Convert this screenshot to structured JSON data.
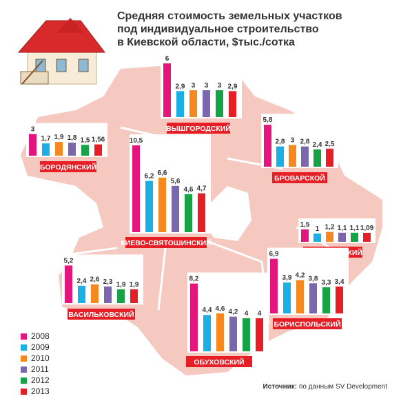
{
  "title": [
    "Средняя стоимость земельных участков",
    "под индивидуальное строительство",
    "в Киевской области, $тыс./сотка"
  ],
  "source": {
    "label": "Источник:",
    "text": "по данным SV Development"
  },
  "colors": [
    "#e4157c",
    "#1ab0e6",
    "#f5891f",
    "#7b67b0",
    "#15a346",
    "#e51f25"
  ],
  "chart_data": [
    {
      "type": "bar",
      "region": "ВЫШГОРОДСКИЙ",
      "categories": [
        "2008",
        "2009",
        "2010",
        "2011",
        "2012",
        "2013"
      ],
      "values": [
        6,
        2.9,
        3,
        3,
        3,
        2.9
      ],
      "labels": [
        "6",
        "2,9",
        "3",
        "3",
        "3",
        "2,9"
      ]
    },
    {
      "type": "bar",
      "region": "БОРОДЯНСКИЙ",
      "categories": [
        "2008",
        "2009",
        "2010",
        "2011",
        "2012",
        "2013"
      ],
      "values": [
        3,
        1.7,
        1.9,
        1.8,
        1.5,
        1.56
      ],
      "labels": [
        "3",
        "1,7",
        "1,9",
        "1,8",
        "1,5",
        "1,56"
      ]
    },
    {
      "type": "bar",
      "region": "БРОВАРСКОЙ",
      "categories": [
        "2008",
        "2009",
        "2010",
        "2011",
        "2012",
        "2013"
      ],
      "values": [
        5.8,
        2.8,
        3,
        2.8,
        2.4,
        2.5
      ],
      "labels": [
        "5,8",
        "2,8",
        "3",
        "2,8",
        "2,4",
        "2,5"
      ]
    },
    {
      "type": "bar",
      "region": "КИЕВО-СВЯТОШИНСКИЙ",
      "categories": [
        "2008",
        "2009",
        "2010",
        "2011",
        "2012",
        "2013"
      ],
      "values": [
        10.5,
        6.2,
        6.6,
        5.6,
        4.6,
        4.7
      ],
      "labels": [
        "10,5",
        "6,2",
        "6,6",
        "5,6",
        "4,6",
        "4,7"
      ]
    },
    {
      "type": "bar",
      "region": "БАРЫШЕВСКИЙ",
      "categories": [
        "2008",
        "2009",
        "2010",
        "2011",
        "2012",
        "2013"
      ],
      "values": [
        1.5,
        1,
        1.2,
        1.1,
        1.1,
        1.09
      ],
      "labels": [
        "1,5",
        "1",
        "1,2",
        "1,1",
        "1,1",
        "1,09"
      ]
    },
    {
      "type": "bar",
      "region": "ВАСИЛЬКОВСКИЙ",
      "categories": [
        "2008",
        "2009",
        "2010",
        "2011",
        "2012",
        "2013"
      ],
      "values": [
        5.2,
        2.4,
        2.6,
        2.3,
        1.9,
        1.9
      ],
      "labels": [
        "5,2",
        "2,4",
        "2,6",
        "2,3",
        "1,9",
        "1,9"
      ]
    },
    {
      "type": "bar",
      "region": "ОБУХОВСКИЙ",
      "categories": [
        "2008",
        "2009",
        "2010",
        "2011",
        "2012",
        "2013"
      ],
      "values": [
        8.2,
        4.4,
        4.6,
        4.2,
        4,
        4
      ],
      "labels": [
        "8,2",
        "4,4",
        "4,6",
        "4,2",
        "4",
        "4"
      ]
    },
    {
      "type": "bar",
      "region": "БОРИСПОЛЬСКИЙ",
      "categories": [
        "2008",
        "2009",
        "2010",
        "2011",
        "2012",
        "2013"
      ],
      "values": [
        6.9,
        3.9,
        4.2,
        3.8,
        3.3,
        3.4
      ],
      "labels": [
        "6,9",
        "3,9",
        "4,2",
        "3,8",
        "3,3",
        "3,4"
      ]
    }
  ],
  "legend": [
    "2008",
    "2009",
    "2010",
    "2011",
    "2012",
    "2013"
  ]
}
